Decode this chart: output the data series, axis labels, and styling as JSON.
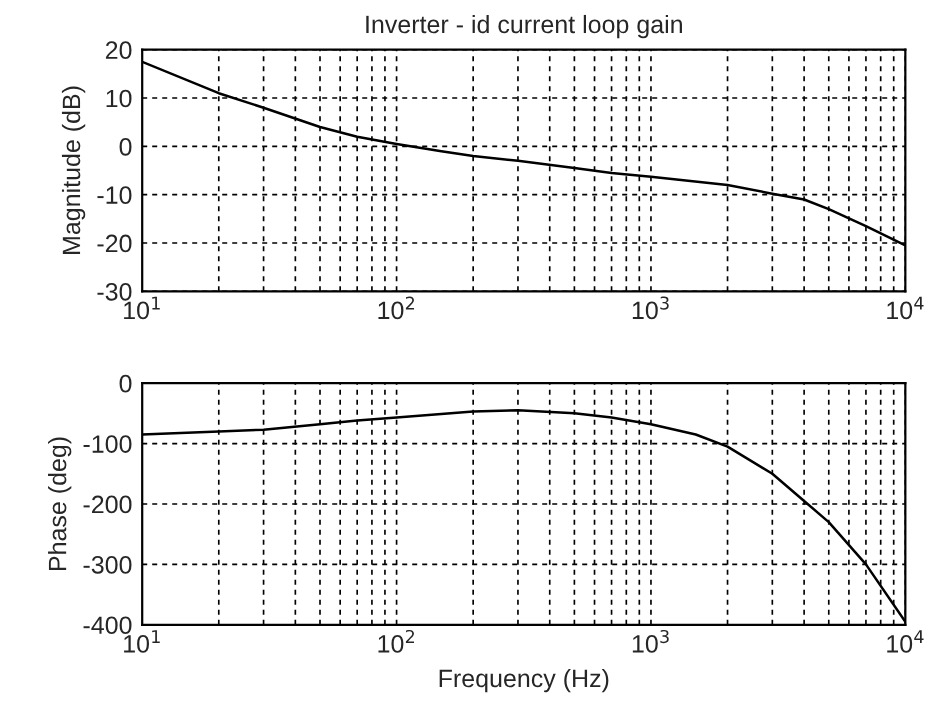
{
  "chart_data": [
    {
      "type": "line",
      "title": "Inverter - id current loop gain",
      "ylabel": "Magnitude (dB)",
      "log": "x",
      "grid": true,
      "marker": "none",
      "line_style": "solid",
      "xlim": [
        10,
        10000
      ],
      "xticks": [
        {
          "value": 10,
          "label": "10$^{1}$"
        },
        {
          "value": 100,
          "label": "10$^{2}$"
        },
        {
          "value": 1000,
          "label": "10$^{3}$"
        },
        {
          "value": 10000,
          "label": "10$^{4}$"
        }
      ],
      "ylim": [
        -30,
        20
      ],
      "yticks": [
        -30,
        -20,
        -10,
        0,
        10,
        20
      ],
      "series": [
        {
          "color": "#000000",
          "x": [
            10,
            20,
            30,
            50,
            70,
            100,
            150,
            200,
            300,
            500,
            700,
            1000,
            2000,
            3000,
            4000,
            5000,
            7000,
            10000
          ],
          "values": [
            17.5,
            11,
            8,
            4,
            2,
            0.5,
            -1,
            -2,
            -3,
            -4.5,
            -5.5,
            -6.3,
            -8,
            -9.8,
            -11,
            -13,
            -16.5,
            -20.5
          ]
        }
      ]
    },
    {
      "type": "line",
      "xlabel": "Frequency (Hz)",
      "ylabel": "Phase (deg)",
      "log": "x",
      "grid": true,
      "marker": "none",
      "line_style": "solid",
      "xlim": [
        10,
        10000
      ],
      "xticks": [
        {
          "value": 10,
          "label": "10$^{1}$"
        },
        {
          "value": 100,
          "label": "10$^{2}$"
        },
        {
          "value": 1000,
          "label": "10$^{3}$"
        },
        {
          "value": 10000,
          "label": "10$^{4}$"
        }
      ],
      "ylim": [
        -400,
        0
      ],
      "yticks": [
        -400,
        -300,
        -200,
        -100,
        0
      ],
      "series": [
        {
          "color": "#000000",
          "x": [
            10,
            20,
            30,
            50,
            70,
            100,
            200,
            300,
            500,
            700,
            1000,
            1500,
            2000,
            3000,
            4000,
            5000,
            7000,
            10000
          ],
          "values": [
            -85,
            -80,
            -77,
            -68,
            -62,
            -57,
            -47,
            -45,
            -50,
            -57,
            -68,
            -85,
            -105,
            -150,
            -195,
            -230,
            -300,
            -395
          ]
        }
      ]
    }
  ]
}
